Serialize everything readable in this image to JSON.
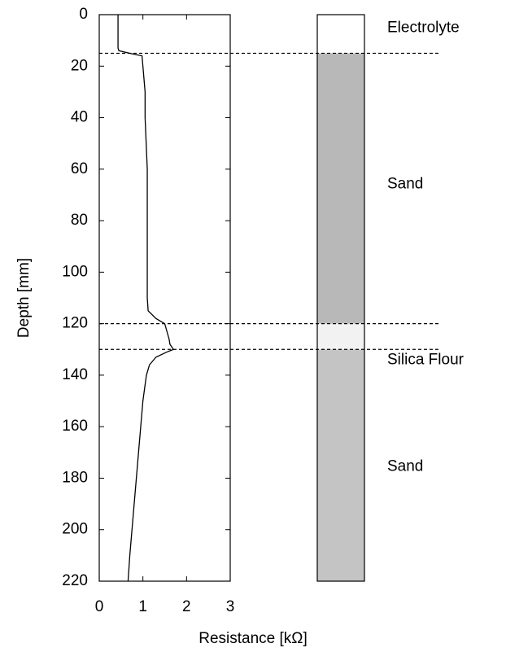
{
  "chart_data": {
    "type": "line",
    "xlabel": "Resistance [kΩ]",
    "ylabel": "Depth [mm]",
    "xlim": [
      0,
      3
    ],
    "xticks": [
      0,
      1,
      2,
      3
    ],
    "ylim": [
      0,
      220
    ],
    "yticks": [
      0,
      20,
      40,
      60,
      80,
      100,
      120,
      140,
      160,
      180,
      200,
      220
    ],
    "inverted_y": true,
    "color": "#000000",
    "y": [
      0,
      13,
      14,
      15,
      16,
      20,
      30,
      40,
      60,
      80,
      100,
      110,
      115,
      118,
      120,
      123,
      126,
      128,
      130,
      131,
      133,
      136,
      140,
      150,
      160,
      170,
      180,
      190,
      200,
      210,
      220
    ],
    "values": [
      0.43,
      0.43,
      0.45,
      0.7,
      0.98,
      1.0,
      1.05,
      1.05,
      1.1,
      1.1,
      1.1,
      1.1,
      1.12,
      1.3,
      1.5,
      1.55,
      1.6,
      1.62,
      1.7,
      1.55,
      1.3,
      1.15,
      1.08,
      1.0,
      0.95,
      0.9,
      0.85,
      0.8,
      0.75,
      0.7,
      0.66
    ],
    "boundaries": [
      15,
      120,
      130
    ],
    "layers": [
      {
        "name": "Electrolyte",
        "color": "#ffffff"
      },
      {
        "name": "Sand",
        "color": "#b8b8b8"
      },
      {
        "name": "Silica Flour",
        "color": "#f2f2f2"
      },
      {
        "name": "Sand",
        "color": "#c4c4c4"
      }
    ]
  }
}
